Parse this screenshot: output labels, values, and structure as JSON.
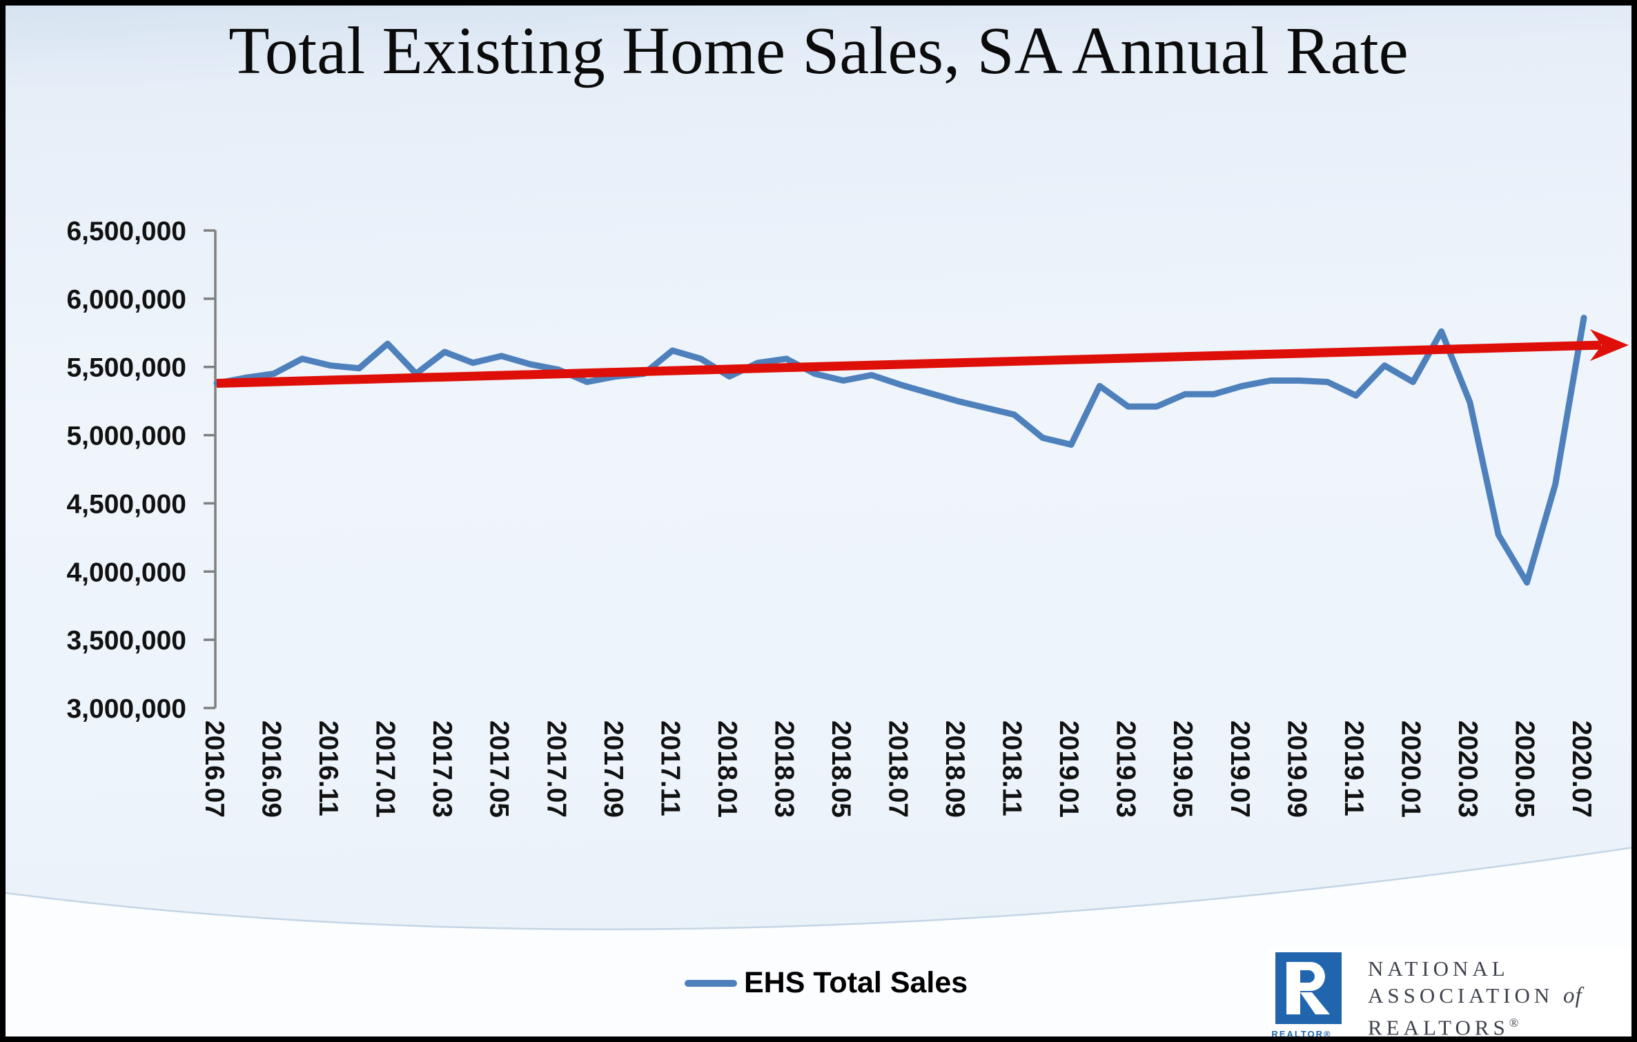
{
  "title": "Total Existing Home Sales, SA Annual Rate",
  "legend": {
    "label": "EHS Total Sales"
  },
  "logo": {
    "realtor_label": "REALTOR®",
    "org_line1": "NATIONAL",
    "org_line2": "ASSOCIATION",
    "org_of": "of",
    "org_line3": "REALTORS",
    "org_reg": "®",
    "square_color": "#2065ad",
    "text_color": "#3f434c"
  },
  "colors": {
    "series_blue": "#4E80BC",
    "trend_red": "#DE0F08",
    "axis_gray": "#7f7f7f",
    "background_top": "#d7e3f1",
    "background_mid": "#eff5fb",
    "swoosh_line": "#c3d5e6",
    "swoosh_fill": "#fcfdff"
  },
  "chart_data": {
    "type": "line",
    "title": "Total Existing Home Sales, SA Annual Rate",
    "xlabel": "",
    "ylabel": "",
    "ylim": [
      3000000,
      6500000
    ],
    "ytick_step": 500000,
    "grid": false,
    "legend_position": "bottom-center",
    "xlabel_every": 2,
    "x": [
      "2016.07",
      "2016.08",
      "2016.09",
      "2016.10",
      "2016.11",
      "2016.12",
      "2017.01",
      "2017.02",
      "2017.03",
      "2017.04",
      "2017.05",
      "2017.06",
      "2017.07",
      "2017.08",
      "2017.09",
      "2017.10",
      "2017.11",
      "2017.12",
      "2018.01",
      "2018.02",
      "2018.03",
      "2018.04",
      "2018.05",
      "2018.06",
      "2018.07",
      "2018.08",
      "2018.09",
      "2018.10",
      "2018.11",
      "2018.12",
      "2019.01",
      "2019.02",
      "2019.03",
      "2019.04",
      "2019.05",
      "2019.06",
      "2019.07",
      "2019.08",
      "2019.09",
      "2019.10",
      "2019.11",
      "2019.12",
      "2020.01",
      "2020.02",
      "2020.03",
      "2020.04",
      "2020.05",
      "2020.06",
      "2020.07"
    ],
    "series": [
      {
        "name": "EHS Total Sales",
        "color": "#4E80BC",
        "values": [
          5380000,
          5420000,
          5450000,
          5560000,
          5510000,
          5490000,
          5670000,
          5450000,
          5610000,
          5530000,
          5580000,
          5520000,
          5480000,
          5390000,
          5430000,
          5450000,
          5620000,
          5560000,
          5430000,
          5530000,
          5560000,
          5450000,
          5400000,
          5440000,
          5370000,
          5310000,
          5250000,
          5200000,
          5150000,
          4980000,
          4930000,
          5360000,
          5210000,
          5210000,
          5300000,
          5300000,
          5360000,
          5400000,
          5400000,
          5390000,
          5290000,
          5510000,
          5390000,
          5760000,
          5240000,
          4270000,
          3920000,
          4640000,
          5860000
        ]
      }
    ],
    "trend_arrow": {
      "description": "red straight trend arrow across the series",
      "color": "#DE0F08",
      "start_x": "2016.07",
      "start_value": 5380000,
      "end_x": "2020.07",
      "end_value": 5660000
    }
  }
}
